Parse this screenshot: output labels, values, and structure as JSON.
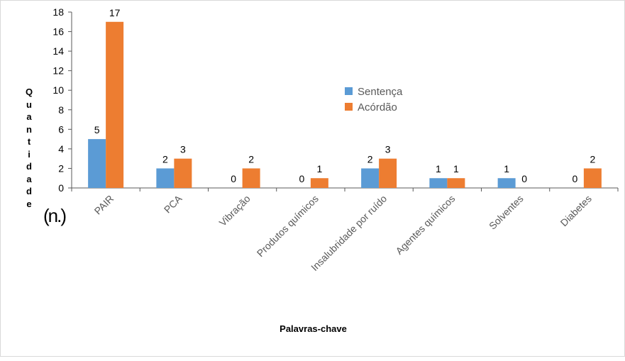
{
  "chart_data": {
    "type": "bar",
    "categories": [
      "PAIR",
      "PCA",
      "Vibração",
      "Produtos químicos",
      "Insalubridade por ruído",
      "Agentes químicos",
      "Solventes",
      "Diabetes"
    ],
    "series": [
      {
        "name": "Sentença",
        "values": [
          5,
          2,
          0,
          0,
          2,
          1,
          1,
          0
        ],
        "color": "#5b9bd5"
      },
      {
        "name": "Acórdão",
        "values": [
          17,
          3,
          2,
          1,
          3,
          1,
          0,
          2
        ],
        "color": "#ed7d31"
      }
    ],
    "ylabel_letters": [
      "Q",
      "u",
      "a",
      "n",
      "t",
      "i",
      "d",
      "a",
      "d",
      "e"
    ],
    "yunit": "(n.)",
    "xlabel": "Palavras-chave",
    "ylim": [
      0,
      18
    ],
    "yticks": [
      0,
      2,
      4,
      6,
      8,
      10,
      12,
      14,
      16,
      18
    ],
    "legend_position": "center-right",
    "zero_labels_shown": {
      "Sentença": [
        false,
        false,
        true,
        true,
        false,
        false,
        false,
        true
      ],
      "Acórdão": [
        false,
        false,
        false,
        false,
        false,
        false,
        true,
        false
      ]
    },
    "grid": false
  }
}
